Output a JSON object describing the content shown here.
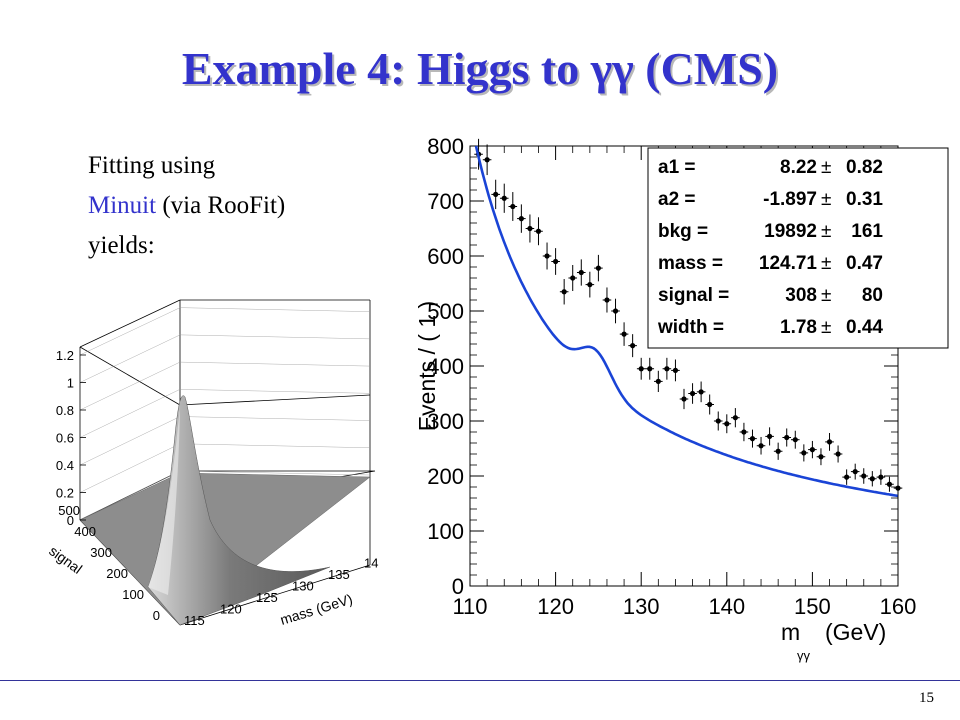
{
  "title": "Example 4: Higgs to γγ (CMS)",
  "text": {
    "line1": "Fitting using",
    "line2_link": "Minuit",
    "line2_rest": " (via RooFit)",
    "line3": "yields:"
  },
  "page_number": "15",
  "colors": {
    "title": "#3333cc",
    "fit_curve": "#1a44d6",
    "link": "#3333cc"
  },
  "chart_data": [
    {
      "type": "scatter",
      "description_role": "main fit plot",
      "ylabel": "Events / ( 1 )",
      "xlabel": "m",
      "xlabel_sub": "γγ",
      "xlabel_unit": "(GeV)",
      "xlim": [
        110,
        160
      ],
      "ylim": [
        0,
        800
      ],
      "xticks": [
        "110",
        "120",
        "130",
        "140",
        "150",
        "160"
      ],
      "yticks": [
        "0",
        "100",
        "200",
        "300",
        "400",
        "500",
        "600",
        "700",
        "800"
      ],
      "points": [
        [
          111,
          785
        ],
        [
          112,
          775
        ],
        [
          113,
          712
        ],
        [
          114,
          705
        ],
        [
          115,
          690
        ],
        [
          116,
          668
        ],
        [
          117,
          650
        ],
        [
          118,
          645
        ],
        [
          119,
          600
        ],
        [
          120,
          590
        ],
        [
          121,
          535
        ],
        [
          122,
          560
        ],
        [
          123,
          570
        ],
        [
          124,
          548
        ],
        [
          125,
          578
        ],
        [
          126,
          520
        ],
        [
          127,
          500
        ],
        [
          128,
          458
        ],
        [
          129,
          437
        ],
        [
          130,
          395
        ],
        [
          131,
          395
        ],
        [
          132,
          372
        ],
        [
          133,
          395
        ],
        [
          134,
          392
        ],
        [
          135,
          340
        ],
        [
          136,
          350
        ],
        [
          137,
          353
        ],
        [
          138,
          330
        ],
        [
          139,
          300
        ],
        [
          140,
          295
        ],
        [
          141,
          306
        ],
        [
          142,
          280
        ],
        [
          143,
          268
        ],
        [
          144,
          255
        ],
        [
          145,
          272
        ],
        [
          146,
          245
        ],
        [
          147,
          270
        ],
        [
          148,
          266
        ],
        [
          149,
          242
        ],
        [
          150,
          248
        ],
        [
          151,
          235
        ],
        [
          152,
          262
        ],
        [
          153,
          240
        ],
        [
          154,
          198
        ],
        [
          155,
          208
        ],
        [
          156,
          200
        ],
        [
          157,
          195
        ],
        [
          158,
          198
        ],
        [
          159,
          185
        ],
        [
          160,
          178
        ]
      ],
      "fit_params": [
        {
          "label": "a1 =",
          "value": "8.22",
          "error": "0.82"
        },
        {
          "label": "a2 =",
          "value": "-1.897",
          "error": "0.31"
        },
        {
          "label": "bkg =",
          "value": "19892",
          "error": "161"
        },
        {
          "label": "mass =",
          "value": "124.71",
          "error": "0.47"
        },
        {
          "label": "signal =",
          "value": "308",
          "error": "80"
        },
        {
          "label": "width =",
          "value": "1.78",
          "error": "0.44"
        }
      ]
    },
    {
      "type": "surface3d",
      "description_role": "likelihood surface",
      "zticks": [
        "0",
        "0.2",
        "0.4",
        "0.6",
        "0.8",
        "1",
        "1.2"
      ],
      "signal_ticks": [
        "0",
        "100",
        "200",
        "300",
        "400",
        "500"
      ],
      "mass_ticks": [
        "115",
        "120",
        "125",
        "130",
        "135",
        "14"
      ],
      "signal_label": "signal",
      "mass_label": "mass (GeV)"
    }
  ]
}
